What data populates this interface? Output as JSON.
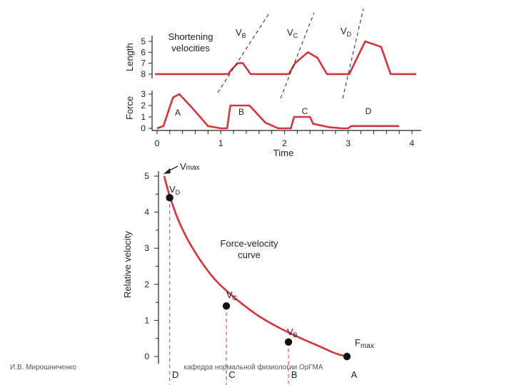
{
  "footer": {
    "left": "И.В. Мирошниченко",
    "center": "кафедра нормальной физиологии ОрГМА"
  },
  "chart_data": [
    {
      "type": "line",
      "panel": "length",
      "ylabel": "Length",
      "title": "Shortening velocities",
      "title_lines": [
        "Shortening",
        "velocities"
      ],
      "ytick_labels": [
        "5",
        "6",
        "7",
        "8"
      ],
      "y_inverted": true,
      "x": [
        0,
        0.9,
        1.15,
        1.2,
        1.3,
        1.38,
        1.5,
        1.6,
        1.9,
        2.1,
        2.2,
        2.4,
        2.55,
        2.7,
        2.95,
        3.05,
        3.3,
        3.55,
        3.7,
        4.1
      ],
      "y": [
        8,
        8,
        8,
        7.6,
        7,
        7,
        8,
        8,
        8,
        8,
        7,
        6,
        6.5,
        8,
        8,
        8,
        5,
        5.5,
        8,
        8
      ],
      "velocity_lines": [
        "VB",
        "VC",
        "VD"
      ]
    },
    {
      "type": "line",
      "panel": "force",
      "ylabel": "Force",
      "xlabel": "Time",
      "xtick_labels": [
        "0",
        "1",
        "2",
        "3",
        "4"
      ],
      "ytick_labels": [
        "0",
        "1",
        "2",
        "3"
      ],
      "xlim": [
        0,
        4
      ],
      "ylim": [
        0,
        3
      ],
      "x": [
        0,
        0.1,
        0.25,
        0.35,
        0.55,
        0.8,
        1.0,
        1.1,
        1.15,
        1.45,
        1.5,
        1.7,
        1.9,
        2.05,
        2.1,
        2.15,
        2.4,
        2.45,
        2.7,
        2.9,
        3.0,
        3.05,
        3.8
      ],
      "y": [
        0,
        0.2,
        2.7,
        3,
        1.8,
        0.2,
        0,
        0,
        2,
        2,
        1.7,
        0.5,
        0,
        0,
        0,
        1,
        1,
        0.4,
        0.1,
        0,
        0,
        0.2,
        0.2
      ],
      "segment_labels": [
        "A",
        "B",
        "C",
        "D"
      ]
    },
    {
      "type": "line",
      "panel": "force-velocity",
      "title": "Force-velocity curve",
      "title_lines": [
        "Force-velocity",
        "curve"
      ],
      "ylabel": "Relative velocity",
      "ytick_labels": [
        "0",
        "1",
        "2",
        "3",
        "4",
        "5"
      ],
      "ylim": [
        0,
        5
      ],
      "xlim": [
        0,
        100
      ],
      "curve_x": [
        0,
        3,
        8,
        15,
        25,
        35,
        50,
        62,
        75,
        85,
        92,
        96,
        100
      ],
      "curve_y": [
        5,
        4.45,
        3.75,
        3.05,
        2.3,
        1.78,
        1.18,
        0.82,
        0.5,
        0.28,
        0.12,
        0.05,
        0
      ],
      "points": [
        {
          "label": "VD",
          "x": 3,
          "y": 4.4,
          "category": "D"
        },
        {
          "label": "VC",
          "x": 34,
          "y": 1.4,
          "category": "C"
        },
        {
          "label": "VB",
          "x": 68,
          "y": 0.4,
          "category": "B"
        },
        {
          "label": "Fmax",
          "x": 100,
          "y": 0,
          "category": "A"
        }
      ],
      "vmax_label": "Vmax",
      "xtick_labels": [
        "D",
        "C",
        "B",
        "A"
      ]
    }
  ]
}
